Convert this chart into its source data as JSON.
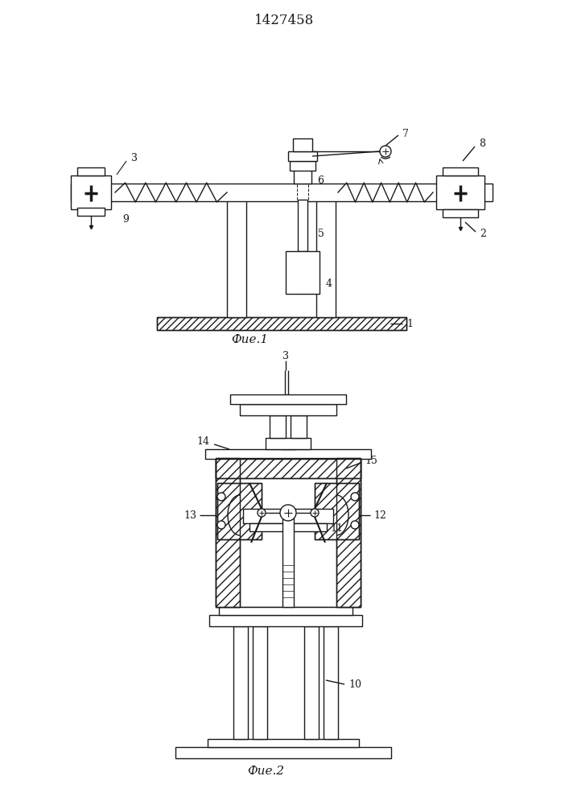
{
  "title": "1427458",
  "fig1_label": "Фие.1",
  "fig2_label": "Фие.2",
  "bg_color": "#ffffff",
  "line_color": "#1a1a1a",
  "lw": 1.0
}
